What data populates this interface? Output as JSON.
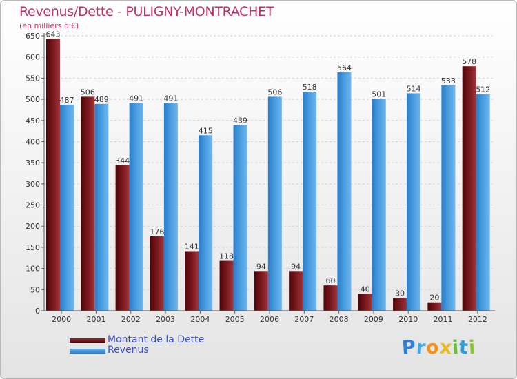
{
  "chart_data": {
    "type": "bar",
    "title": "Revenus/Dette - PULIGNY-MONTRACHET",
    "subtitle": "(en milliers d'€)",
    "categories": [
      "2000",
      "2001",
      "2002",
      "2003",
      "2004",
      "2005",
      "2006",
      "2007",
      "2008",
      "2009",
      "2010",
      "2011",
      "2012"
    ],
    "series": [
      {
        "name": "Montant de la Dette",
        "color": "#7a1a1f",
        "values": [
          643,
          506,
          344,
          176,
          141,
          118,
          94,
          94,
          60,
          40,
          30,
          20,
          578
        ]
      },
      {
        "name": "Revenus",
        "color": "#4a9ee0",
        "values": [
          487,
          489,
          491,
          491,
          415,
          439,
          506,
          518,
          564,
          501,
          514,
          533,
          512
        ]
      }
    ],
    "ylim": [
      0,
      650
    ],
    "yticks": [
      0,
      50,
      100,
      150,
      200,
      250,
      300,
      350,
      400,
      450,
      500,
      550,
      600,
      650
    ],
    "grid": true,
    "legend": "bottom-left"
  },
  "logo": {
    "letters": [
      {
        "text": "P",
        "color": "#2e7fd8"
      },
      {
        "text": "r",
        "color": "#44a7e6"
      },
      {
        "text": "o",
        "color": "#f3931d"
      },
      {
        "text": "x",
        "color": "#e7b820"
      },
      {
        "text": "i",
        "color": "#6cbf3d"
      },
      {
        "text": "t",
        "color": "#2e9ed8"
      },
      {
        "text": "i",
        "color": "#8cc63f"
      }
    ]
  }
}
